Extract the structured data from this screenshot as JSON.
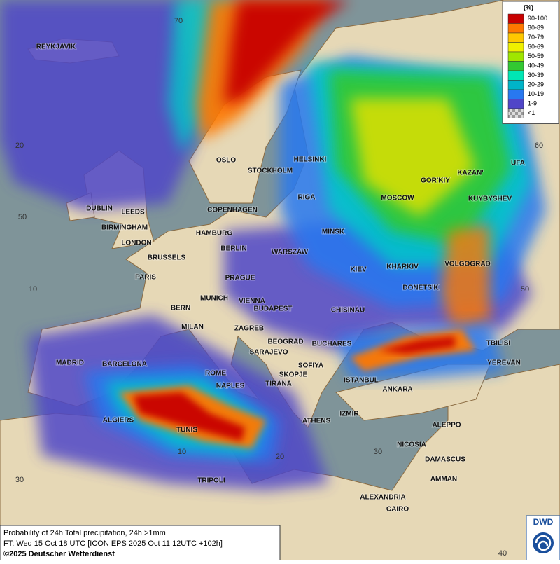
{
  "legend": {
    "title": "(%)",
    "items": [
      {
        "label": "90-100",
        "color": "#c80000"
      },
      {
        "label": "80-89",
        "color": "#ff7800"
      },
      {
        "label": "70-79",
        "color": "#ffc800"
      },
      {
        "label": "60-69",
        "color": "#f0f000"
      },
      {
        "label": "50-59",
        "color": "#a0e600"
      },
      {
        "label": "40-49",
        "color": "#32c832"
      },
      {
        "label": "30-39",
        "color": "#00e6b4"
      },
      {
        "label": "20-29",
        "color": "#00b4c8"
      },
      {
        "label": "10-19",
        "color": "#2878f0"
      },
      {
        "label": "1-9",
        "color": "#5046c8"
      },
      {
        "label": "<1",
        "color": "#a0a0a0"
      }
    ]
  },
  "cities": [
    "REYKJAVIK",
    "OSLO",
    "STOCKHOLM",
    "HELSINKI",
    "DUBLIN",
    "LEEDS",
    "BIRMINGHAM",
    "LONDON",
    "COPENHAGEN",
    "RIGA",
    "GOR'KIY",
    "MOSCOW",
    "KAZAN'",
    "UFA",
    "KUYBYSHEV",
    "HAMBURG",
    "MINSK",
    "BERLIN",
    "BRUSSELS",
    "WARSZAW",
    "PARIS",
    "PRAGUE",
    "KIEV",
    "KHARKIV",
    "VOLGOGRAD",
    "DONETS'K",
    "MUNICH",
    "VIENNA",
    "BERN",
    "BUDAPEST",
    "CHISINAU",
    "MILAN",
    "ZAGREB",
    "BEOGRAD",
    "BUCHARES",
    "TBILISI",
    "MADRID",
    "BARCELONA",
    "SARAJEVO",
    "SOFIYA",
    "YEREVAN",
    "ROME",
    "NAPLES",
    "SKOPJE",
    "TIRANA",
    "ISTANBUL",
    "ANKARA",
    "ALGIERS",
    "TUNIS",
    "IZMIR",
    "ATHENS",
    "ALEPPO",
    "NICOSIA",
    "DAMASCUS",
    "AMMAN",
    "TRIPOLI",
    "ALEXANDRIA",
    "CAIRO"
  ],
  "grid_labels": [
    "70",
    "20",
    "60",
    "50",
    "10",
    "50",
    "30",
    "40",
    "30",
    "20",
    "10"
  ],
  "footer": {
    "lines": [
      "Probability of 24h Total precipitation, 24h >1mm",
      "FT: Wed 15 Oct 18 UTC [ICON EPS 2025 Oct 11 12UTC +102h]",
      "©2025 Deutscher Wetterdienst"
    ]
  },
  "logo": "DWD"
}
